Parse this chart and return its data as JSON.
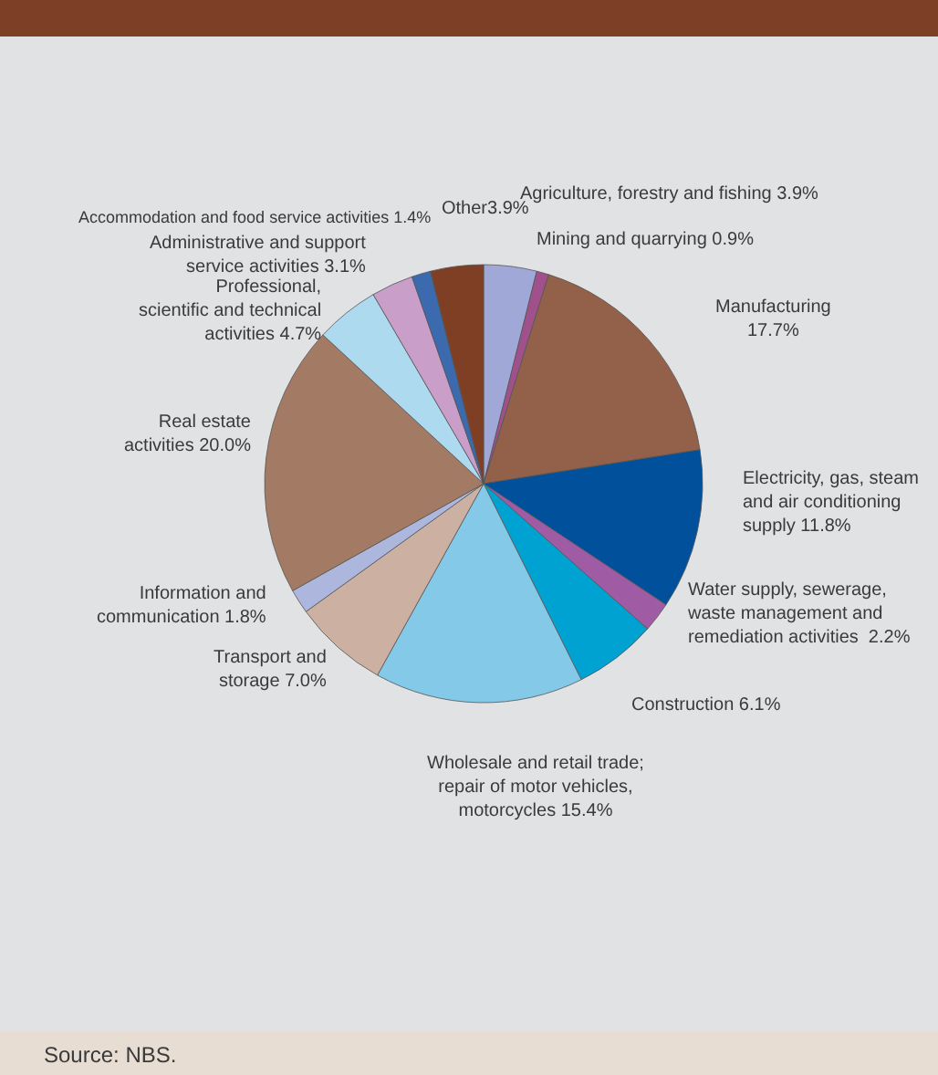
{
  "chart_data": {
    "type": "pie",
    "categories": [
      "Agriculture, forestry and fishing",
      "Mining and quarrying",
      "Manufacturing",
      "Electricity, gas, steam\nand air conditioning\nsupply",
      "Water supply, sewerage,\nwaste management and\nremediation activities ",
      "Construction",
      "Wholesale and retail trade;\nrepair of motor vehicles,\nmotorcycles",
      "Transport and\nstorage",
      "Information and\ncommunication",
      "Real estate\nactivities",
      "Professional,\nscientific and technical\nactivities",
      "Administrative and support\nservice activities",
      "Accommodation and food service activities",
      "Other"
    ],
    "values": [
      3.9,
      0.9,
      17.7,
      11.8,
      2.2,
      6.1,
      15.4,
      7.0,
      1.8,
      20.0,
      4.7,
      3.1,
      1.4,
      3.9
    ],
    "value_labels": [
      "3.9%",
      "0.9%",
      "17.7%",
      "11.8%",
      "2.2%",
      "6.1%",
      "15.4%",
      "7.0%",
      "1.8%",
      "20.0%",
      "4.7%",
      "3.1%",
      "1.4%",
      "3.9%"
    ],
    "colors": [
      "#a0a8d8",
      "#a0508a",
      "#93604a",
      "#00509b",
      "#a05ba5",
      "#00a2d1",
      "#84c9e8",
      "#ccb0a1",
      "#adb6dc",
      "#a37a64",
      "#addaef",
      "#c99ec8",
      "#3b6bae",
      "#7e3f25"
    ],
    "annotations": [
      "Source: NBS."
    ]
  }
}
